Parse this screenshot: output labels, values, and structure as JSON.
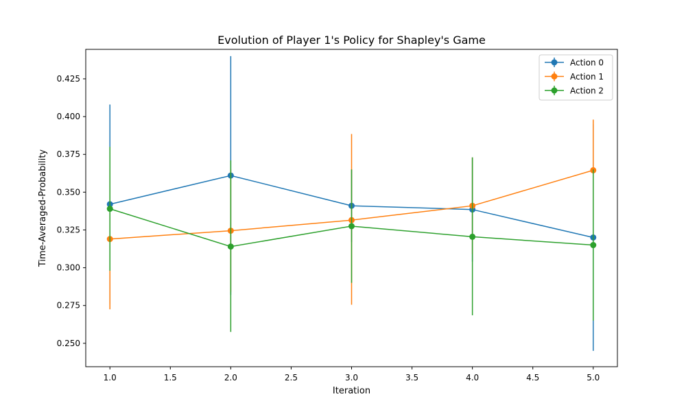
{
  "chart_data": {
    "type": "line",
    "title": "Evolution of Player 1's Policy for Shapley's Game",
    "xlabel": "Iteration",
    "ylabel": "Time-Averaged-Probability",
    "xlim": [
      0.8,
      5.2
    ],
    "ylim": [
      0.2345,
      0.4445
    ],
    "xticks": [
      1.0,
      1.5,
      2.0,
      2.5,
      3.0,
      3.5,
      4.0,
      4.5,
      5.0
    ],
    "xtick_labels": [
      "1.0",
      "1.5",
      "2.0",
      "2.5",
      "3.0",
      "3.5",
      "4.0",
      "4.5",
      "5.0"
    ],
    "yticks": [
      0.25,
      0.275,
      0.3,
      0.325,
      0.35,
      0.375,
      0.4,
      0.425
    ],
    "ytick_labels": [
      "0.250",
      "0.275",
      "0.300",
      "0.325",
      "0.350",
      "0.375",
      "0.400",
      "0.425"
    ],
    "grid": false,
    "legend_position": "top-right",
    "x": [
      1,
      2,
      3,
      4,
      5
    ],
    "series": [
      {
        "name": "Action 0",
        "color": "#1f77b4",
        "values": [
          0.342,
          0.361,
          0.341,
          0.3385,
          0.32
        ],
        "err_low": [
          0.276,
          0.282,
          0.317,
          0.304,
          0.245
        ],
        "err_high": [
          0.408,
          0.44,
          0.365,
          0.373,
          0.395
        ]
      },
      {
        "name": "Action 1",
        "color": "#ff7f0e",
        "values": [
          0.319,
          0.3245,
          0.3315,
          0.341,
          0.3645
        ],
        "err_low": [
          0.2725,
          0.284,
          0.2755,
          0.309,
          0.331
        ],
        "err_high": [
          0.3655,
          0.365,
          0.3885,
          0.373,
          0.398
        ]
      },
      {
        "name": "Action 2",
        "color": "#2ca02c",
        "values": [
          0.339,
          0.314,
          0.3275,
          0.3205,
          0.315
        ],
        "err_low": [
          0.298,
          0.2575,
          0.29,
          0.2685,
          0.265
        ],
        "err_high": [
          0.38,
          0.371,
          0.365,
          0.373,
          0.365
        ]
      }
    ]
  }
}
